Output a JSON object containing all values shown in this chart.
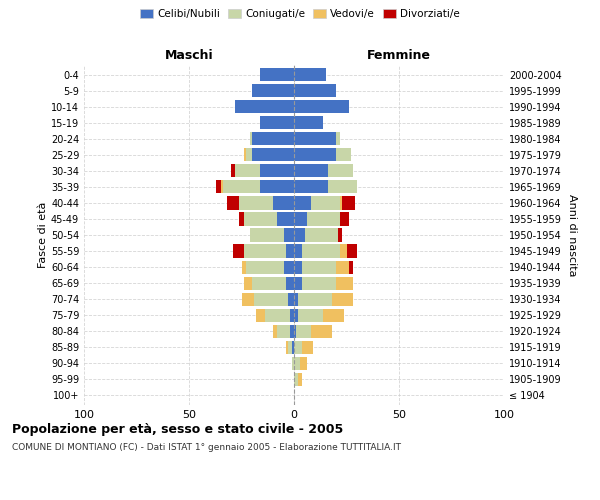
{
  "age_groups": [
    "100+",
    "95-99",
    "90-94",
    "85-89",
    "80-84",
    "75-79",
    "70-74",
    "65-69",
    "60-64",
    "55-59",
    "50-54",
    "45-49",
    "40-44",
    "35-39",
    "30-34",
    "25-29",
    "20-24",
    "15-19",
    "10-14",
    "5-9",
    "0-4"
  ],
  "birth_years": [
    "≤ 1904",
    "1905-1909",
    "1910-1914",
    "1915-1919",
    "1920-1924",
    "1925-1929",
    "1930-1934",
    "1935-1939",
    "1940-1944",
    "1945-1949",
    "1950-1954",
    "1955-1959",
    "1960-1964",
    "1965-1969",
    "1970-1974",
    "1975-1979",
    "1980-1984",
    "1985-1989",
    "1990-1994",
    "1995-1999",
    "2000-2004"
  ],
  "males_celibi": [
    0,
    0,
    0,
    1,
    2,
    2,
    3,
    4,
    5,
    4,
    5,
    8,
    10,
    16,
    16,
    20,
    20,
    16,
    28,
    20,
    16
  ],
  "males_coniugati": [
    0,
    0,
    1,
    2,
    6,
    12,
    16,
    16,
    18,
    20,
    16,
    16,
    16,
    18,
    12,
    3,
    1,
    0,
    0,
    0,
    0
  ],
  "males_vedovi": [
    0,
    0,
    0,
    1,
    2,
    4,
    6,
    4,
    2,
    0,
    0,
    0,
    0,
    1,
    0,
    1,
    0,
    0,
    0,
    0,
    0
  ],
  "males_divorziati": [
    0,
    0,
    0,
    0,
    0,
    0,
    0,
    0,
    0,
    5,
    0,
    2,
    6,
    2,
    2,
    0,
    0,
    0,
    0,
    0,
    0
  ],
  "females_nubili": [
    0,
    0,
    0,
    0,
    1,
    2,
    2,
    4,
    4,
    4,
    5,
    6,
    8,
    16,
    16,
    20,
    20,
    14,
    26,
    20,
    15
  ],
  "females_coniugate": [
    0,
    2,
    3,
    4,
    7,
    12,
    16,
    16,
    16,
    18,
    16,
    16,
    14,
    14,
    12,
    7,
    2,
    0,
    0,
    0,
    0
  ],
  "females_vedove": [
    0,
    2,
    3,
    5,
    10,
    10,
    10,
    8,
    6,
    3,
    0,
    0,
    1,
    0,
    0,
    0,
    0,
    0,
    0,
    0,
    0
  ],
  "females_divorziate": [
    0,
    0,
    0,
    0,
    0,
    0,
    0,
    0,
    2,
    5,
    2,
    4,
    6,
    0,
    0,
    0,
    0,
    0,
    0,
    0,
    0
  ],
  "colors": {
    "celibi_nubili": "#4472C4",
    "coniugati_e": "#C8D6A8",
    "vedovi_e": "#F0C060",
    "divorziati_e": "#C00000"
  },
  "title_main": "Popolazione per età, sesso e stato civile - 2005",
  "title_sub": "COMUNE DI MONTIANO (FC) - Dati ISTAT 1° gennaio 2005 - Elaborazione TUTTITALIA.IT",
  "ylabel_left": "Fasce di età",
  "ylabel_right": "Anni di nascita",
  "header_left": "Maschi",
  "header_right": "Femmine",
  "legend_labels": [
    "Celibi/Nubili",
    "Coniugati/e",
    "Vedovi/e",
    "Divorziati/e"
  ],
  "bg_color": "#FFFFFF",
  "grid_color": "#CCCCCC"
}
